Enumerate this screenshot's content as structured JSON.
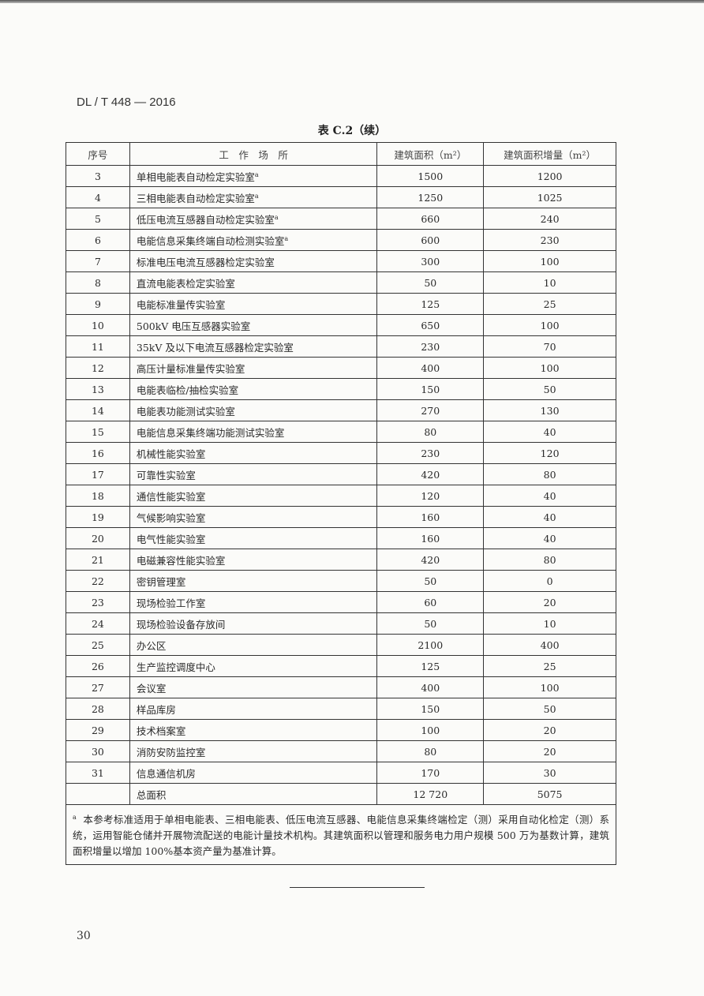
{
  "header": {
    "standard_number": "DL / T 448 — 2016"
  },
  "table": {
    "caption": "表 C.2（续）",
    "columns": [
      "序号",
      "工　作　场　所",
      "建筑面积（m²）",
      "建筑面积增量（m²）"
    ],
    "rows": [
      {
        "no": "3",
        "place": "单相电能表自动检定实验室",
        "mark": "a",
        "area": "1500",
        "increment": "1200"
      },
      {
        "no": "4",
        "place": "三相电能表自动检定实验室",
        "mark": "a",
        "area": "1250",
        "increment": "1025"
      },
      {
        "no": "5",
        "place": "低压电流互感器自动检定实验室",
        "mark": "a",
        "area": "660",
        "increment": "240"
      },
      {
        "no": "6",
        "place": "电能信息采集终端自动检测实验室",
        "mark": "a",
        "area": "600",
        "increment": "230"
      },
      {
        "no": "7",
        "place": "标准电压电流互感器检定实验室",
        "mark": "",
        "area": "300",
        "increment": "100"
      },
      {
        "no": "8",
        "place": "直流电能表检定实验室",
        "mark": "",
        "area": "50",
        "increment": "10"
      },
      {
        "no": "9",
        "place": "电能标准量传实验室",
        "mark": "",
        "area": "125",
        "increment": "25"
      },
      {
        "no": "10",
        "place": "500kV 电压互感器实验室",
        "mark": "",
        "area": "650",
        "increment": "100"
      },
      {
        "no": "11",
        "place": "35kV 及以下电流互感器检定实验室",
        "mark": "",
        "area": "230",
        "increment": "70"
      },
      {
        "no": "12",
        "place": "高压计量标准量传实验室",
        "mark": "",
        "area": "400",
        "increment": "100"
      },
      {
        "no": "13",
        "place": "电能表临检/抽检实验室",
        "mark": "",
        "area": "150",
        "increment": "50"
      },
      {
        "no": "14",
        "place": "电能表功能测试实验室",
        "mark": "",
        "area": "270",
        "increment": "130"
      },
      {
        "no": "15",
        "place": "电能信息采集终端功能测试实验室",
        "mark": "",
        "area": "80",
        "increment": "40"
      },
      {
        "no": "16",
        "place": "机械性能实验室",
        "mark": "",
        "area": "230",
        "increment": "120"
      },
      {
        "no": "17",
        "place": "可靠性实验室",
        "mark": "",
        "area": "420",
        "increment": "80"
      },
      {
        "no": "18",
        "place": "通信性能实验室",
        "mark": "",
        "area": "120",
        "increment": "40"
      },
      {
        "no": "19",
        "place": "气候影响实验室",
        "mark": "",
        "area": "160",
        "increment": "40"
      },
      {
        "no": "20",
        "place": "电气性能实验室",
        "mark": "",
        "area": "160",
        "increment": "40"
      },
      {
        "no": "21",
        "place": "电磁兼容性能实验室",
        "mark": "",
        "area": "420",
        "increment": "80"
      },
      {
        "no": "22",
        "place": "密钥管理室",
        "mark": "",
        "area": "50",
        "increment": "0"
      },
      {
        "no": "23",
        "place": "现场检验工作室",
        "mark": "",
        "area": "60",
        "increment": "20"
      },
      {
        "no": "24",
        "place": "现场检验设备存放间",
        "mark": "",
        "area": "50",
        "increment": "10"
      },
      {
        "no": "25",
        "place": "办公区",
        "mark": "",
        "area": "2100",
        "increment": "400"
      },
      {
        "no": "26",
        "place": "生产监控调度中心",
        "mark": "",
        "area": "125",
        "increment": "25"
      },
      {
        "no": "27",
        "place": "会议室",
        "mark": "",
        "area": "400",
        "increment": "100"
      },
      {
        "no": "28",
        "place": "样品库房",
        "mark": "",
        "area": "150",
        "increment": "50"
      },
      {
        "no": "29",
        "place": "技术档案室",
        "mark": "",
        "area": "100",
        "increment": "20"
      },
      {
        "no": "30",
        "place": "消防安防监控室",
        "mark": "",
        "area": "80",
        "increment": "20"
      },
      {
        "no": "31",
        "place": "信息通信机房",
        "mark": "",
        "area": "170",
        "increment": "30"
      }
    ],
    "total": {
      "label": "总面积",
      "area": "12 720",
      "increment": "5075"
    },
    "footnote": {
      "mark": "a",
      "text": "本参考标准适用于单相电能表、三相电能表、低压电流互感器、电能信息采集终端检定（测）采用自动化检定（测）系统，运用智能仓储并开展物流配送的电能计量技术机构。其建筑面积以管理和服务电力用户规模 500 万为基数计算，建筑面积增量以增加 100%基本资产量为基准计算。"
    }
  },
  "footer": {
    "page_number": "30"
  }
}
